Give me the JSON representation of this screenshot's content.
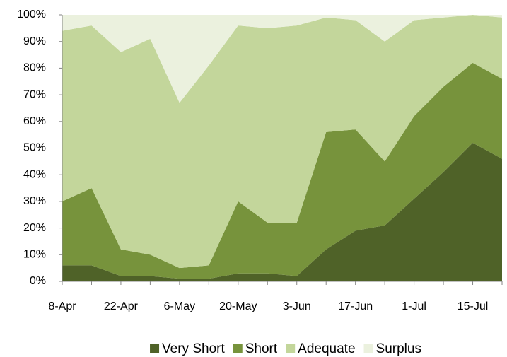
{
  "chart_data": {
    "type": "stacked-area",
    "categories": [
      "8-Apr",
      null,
      "22-Apr",
      null,
      "6-May",
      null,
      "20-May",
      null,
      "3-Jun",
      null,
      "17-Jun",
      null,
      "1-Jul",
      null,
      "15-Jul",
      null
    ],
    "series": [
      {
        "name": "Very Short",
        "color": "#4f6228",
        "values": [
          6,
          6,
          2,
          2,
          1,
          1,
          3,
          3,
          2,
          12,
          19,
          21,
          31,
          41,
          52,
          46
        ]
      },
      {
        "name": "Short",
        "color": "#77933c",
        "values": [
          24,
          29,
          10,
          8,
          4,
          5,
          27,
          19,
          20,
          44,
          38,
          24,
          31,
          32,
          30,
          30
        ]
      },
      {
        "name": "Adequate",
        "color": "#c3d69b",
        "values": [
          64,
          61,
          74,
          81,
          62,
          75,
          66,
          73,
          74,
          43,
          41,
          45,
          36,
          26,
          18,
          23
        ]
      },
      {
        "name": "Surplus",
        "color": "#ebf1de",
        "values": [
          6,
          4,
          14,
          9,
          33,
          19,
          4,
          5,
          4,
          1,
          2,
          10,
          2,
          1,
          0,
          1
        ]
      }
    ],
    "ylim": [
      0,
      100
    ],
    "yticks": [
      {
        "value": 0,
        "label": "0%"
      },
      {
        "value": 10,
        "label": "10%"
      },
      {
        "value": 20,
        "label": "20%"
      },
      {
        "value": 30,
        "label": "30%"
      },
      {
        "value": 40,
        "label": "40%"
      },
      {
        "value": 50,
        "label": "50%"
      },
      {
        "value": 60,
        "label": "60%"
      },
      {
        "value": 70,
        "label": "70%"
      },
      {
        "value": 80,
        "label": "80%"
      },
      {
        "value": 90,
        "label": "90%"
      },
      {
        "value": 100,
        "label": "100%"
      }
    ],
    "legend": "bottom"
  }
}
